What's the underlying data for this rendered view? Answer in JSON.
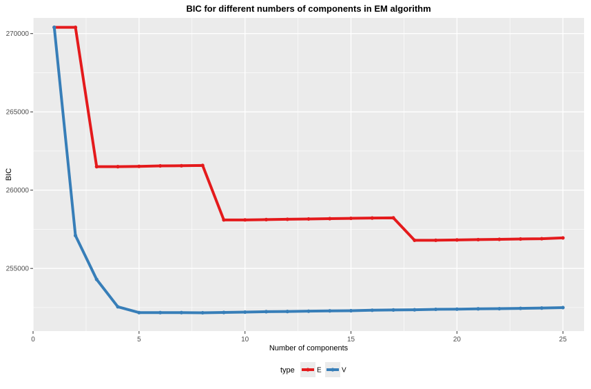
{
  "chart_data": {
    "type": "line",
    "title": "BIC for different numbers of components in EM algorithm",
    "xlabel": "Number of components",
    "ylabel": "BIC",
    "xlim": [
      0,
      26
    ],
    "ylim": [
      251000,
      271000
    ],
    "x_ticks": [
      0,
      5,
      10,
      15,
      20,
      25
    ],
    "x_tick_labels": [
      "0",
      "5",
      "10",
      "15",
      "20",
      "25"
    ],
    "y_ticks": [
      255000,
      260000,
      265000,
      270000
    ],
    "y_tick_labels": [
      "255000",
      "260000",
      "265000",
      "270000"
    ],
    "grid": true,
    "panel_background": "#ebebeb",
    "legend": {
      "title": "type",
      "position": "bottom",
      "entries": [
        "E",
        "V"
      ]
    },
    "x": [
      1,
      2,
      3,
      4,
      5,
      6,
      7,
      8,
      9,
      10,
      11,
      12,
      13,
      14,
      15,
      16,
      17,
      18,
      19,
      20,
      21,
      22,
      23,
      24,
      25
    ],
    "series": [
      {
        "name": "E",
        "color": "#e41a1c",
        "values": [
          270400,
          270400,
          261500,
          261500,
          261520,
          261550,
          261560,
          261580,
          258100,
          258100,
          258120,
          258140,
          258160,
          258180,
          258200,
          258220,
          258230,
          256800,
          256800,
          256820,
          256840,
          256860,
          256880,
          256900,
          256950
        ]
      },
      {
        "name": "V",
        "color": "#377eb8",
        "values": [
          270400,
          257100,
          254300,
          252550,
          252180,
          252180,
          252180,
          252170,
          252190,
          252210,
          252240,
          252250,
          252270,
          252290,
          252300,
          252330,
          252350,
          252360,
          252390,
          252400,
          252420,
          252430,
          252450,
          252470,
          252500
        ]
      }
    ]
  }
}
